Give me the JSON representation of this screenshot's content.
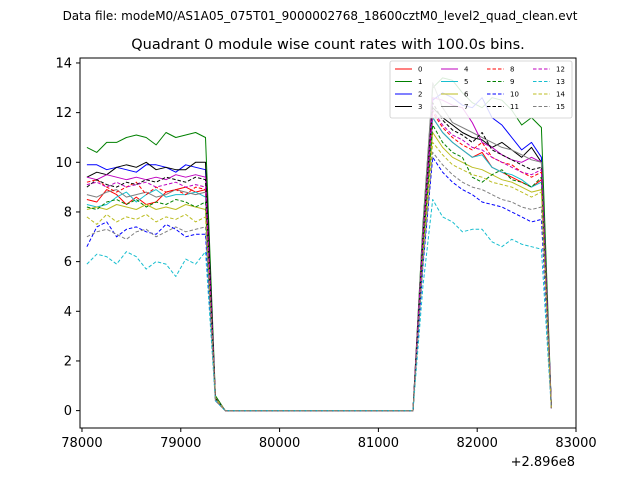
{
  "chart_data": {
    "type": "line",
    "suptitle": "Data file: modeM0/AS1A05_075T01_9000002768_18600cztM0_level2_quad_clean.evt",
    "title": "Quadrant 0 module wise count rates with 100.0s bins.",
    "xlabel": "",
    "ylabel": "",
    "x_offset_label": "+2.896e8",
    "xlim": [
      77980,
      83000
    ],
    "ylim": [
      -0.7,
      14.2
    ],
    "xticks": [
      "78000",
      "79000",
      "80000",
      "81000",
      "82000",
      "83000"
    ],
    "yticks": [
      "0",
      "2",
      "4",
      "6",
      "8",
      "10",
      "12",
      "14"
    ],
    "legend_position": "top-right",
    "x": [
      78050,
      78150,
      78250,
      78350,
      78450,
      78550,
      78650,
      78750,
      78850,
      78950,
      79050,
      79150,
      79250,
      79350,
      79450,
      79550,
      79650,
      79750,
      79850,
      79950,
      80050,
      80150,
      80250,
      80350,
      80450,
      80550,
      80650,
      80750,
      80850,
      80950,
      81050,
      81150,
      81250,
      81350,
      81450,
      81550,
      81650,
      81750,
      81850,
      81950,
      82050,
      82150,
      82250,
      82350,
      82450,
      82550,
      82650,
      82750
    ],
    "series": [
      {
        "name": "0",
        "color": "#ff0000",
        "dash": "solid",
        "values": [
          8.5,
          8.4,
          8.9,
          8.7,
          8.3,
          8.6,
          8.3,
          8.4,
          8.8,
          8.9,
          9.0,
          8.8,
          8.9,
          0.5,
          0.0,
          0.0,
          0.0,
          0.0,
          0.0,
          0.0,
          0.0,
          0.0,
          0.0,
          0.0,
          0.0,
          0.0,
          0.0,
          0.0,
          0.0,
          0.0,
          0.0,
          0.0,
          0.0,
          0.0,
          6.5,
          11.8,
          11.2,
          10.8,
          10.5,
          10.2,
          10.4,
          9.8,
          9.6,
          9.4,
          9.2,
          9.0,
          9.3,
          0.1
        ]
      },
      {
        "name": "1",
        "color": "#008000",
        "dash": "solid",
        "values": [
          10.6,
          10.4,
          10.8,
          10.8,
          11.0,
          11.1,
          11.0,
          10.7,
          11.2,
          11.0,
          11.1,
          11.2,
          11.0,
          0.6,
          0.0,
          0.0,
          0.0,
          0.0,
          0.0,
          0.0,
          0.0,
          0.0,
          0.0,
          0.0,
          0.0,
          0.0,
          0.0,
          0.0,
          0.0,
          0.0,
          0.0,
          0.0,
          0.0,
          0.0,
          7.5,
          13.0,
          13.4,
          13.3,
          12.8,
          12.4,
          12.2,
          12.6,
          12.5,
          12.1,
          11.5,
          11.8,
          11.4,
          0.2
        ]
      },
      {
        "name": "2",
        "color": "#0000ff",
        "dash": "solid",
        "values": [
          9.9,
          9.9,
          9.7,
          9.8,
          9.7,
          9.6,
          9.9,
          9.9,
          9.8,
          9.6,
          9.9,
          9.8,
          9.7,
          0.5,
          0.0,
          0.0,
          0.0,
          0.0,
          0.0,
          0.0,
          0.0,
          0.0,
          0.0,
          0.0,
          0.0,
          0.0,
          0.0,
          0.0,
          0.0,
          0.0,
          0.0,
          0.0,
          0.0,
          0.0,
          7.0,
          12.5,
          12.8,
          12.6,
          12.3,
          12.2,
          12.6,
          11.8,
          11.5,
          11.0,
          10.5,
          10.8,
          10.2,
          0.2
        ]
      },
      {
        "name": "3",
        "color": "#000000",
        "dash": "solid",
        "values": [
          9.4,
          9.6,
          9.5,
          9.8,
          9.9,
          9.8,
          10.0,
          9.7,
          9.8,
          9.7,
          9.7,
          10.0,
          10.0,
          0.5,
          0.0,
          0.0,
          0.0,
          0.0,
          0.0,
          0.0,
          0.0,
          0.0,
          0.0,
          0.0,
          0.0,
          0.0,
          0.0,
          0.0,
          0.0,
          0.0,
          0.0,
          0.0,
          0.0,
          0.0,
          7.2,
          12.2,
          11.8,
          11.5,
          11.2,
          11.0,
          10.9,
          10.6,
          10.8,
          10.5,
          10.2,
          10.6,
          10.0,
          0.2
        ]
      },
      {
        "name": "4",
        "color": "#bf00bf",
        "dash": "solid",
        "values": [
          9.4,
          9.3,
          9.5,
          9.4,
          9.3,
          9.4,
          9.3,
          9.4,
          9.3,
          9.5,
          9.4,
          9.5,
          9.4,
          0.5,
          0.0,
          0.0,
          0.0,
          0.0,
          0.0,
          0.0,
          0.0,
          0.0,
          0.0,
          0.0,
          0.0,
          0.0,
          0.0,
          0.0,
          0.0,
          0.0,
          0.0,
          0.0,
          0.0,
          0.0,
          7.0,
          12.6,
          12.5,
          12.3,
          12.2,
          11.6,
          10.8,
          10.6,
          10.3,
          10.1,
          10.0,
          10.2,
          10.0,
          0.2
        ]
      },
      {
        "name": "5",
        "color": "#17becf",
        "dash": "solid",
        "values": [
          8.3,
          8.2,
          8.3,
          8.6,
          8.8,
          8.4,
          8.7,
          8.9,
          8.6,
          8.7,
          8.7,
          8.8,
          8.6,
          0.5,
          0.0,
          0.0,
          0.0,
          0.0,
          0.0,
          0.0,
          0.0,
          0.0,
          0.0,
          0.0,
          0.0,
          0.0,
          0.0,
          0.0,
          0.0,
          0.0,
          0.0,
          0.0,
          0.0,
          0.0,
          6.6,
          11.8,
          11.2,
          10.8,
          10.5,
          10.2,
          10.3,
          9.8,
          9.6,
          9.5,
          9.3,
          9.0,
          9.2,
          0.1
        ]
      },
      {
        "name": "6",
        "color": "#bcbd22",
        "dash": "solid",
        "values": [
          8.1,
          8.2,
          8.1,
          8.3,
          8.2,
          8.1,
          8.3,
          8.1,
          8.2,
          8.1,
          8.3,
          8.2,
          8.1,
          0.5,
          0.0,
          0.0,
          0.0,
          0.0,
          0.0,
          0.0,
          0.0,
          0.0,
          0.0,
          0.0,
          0.0,
          0.0,
          0.0,
          0.0,
          0.0,
          0.0,
          0.0,
          0.0,
          0.0,
          0.0,
          6.4,
          11.2,
          10.6,
          10.2,
          10.0,
          9.8,
          9.7,
          9.5,
          9.3,
          9.2,
          9.0,
          8.8,
          8.9,
          0.1
        ]
      },
      {
        "name": "7",
        "color": "#808080",
        "dash": "solid",
        "values": [
          8.7,
          8.6,
          8.8,
          8.9,
          8.6,
          8.7,
          8.8,
          8.6,
          8.7,
          8.9,
          8.8,
          8.7,
          8.8,
          0.5,
          0.0,
          0.0,
          0.0,
          0.0,
          0.0,
          0.0,
          0.0,
          0.0,
          0.0,
          0.0,
          0.0,
          0.0,
          0.0,
          0.0,
          0.0,
          0.0,
          0.0,
          0.0,
          0.0,
          0.0,
          7.4,
          13.2,
          12.2,
          11.6,
          11.4,
          11.2,
          11.0,
          10.8,
          10.6,
          10.5,
          10.3,
          10.1,
          10.0,
          0.2
        ]
      },
      {
        "name": "8",
        "color": "#ff0000",
        "dash": "dashed",
        "values": [
          9.2,
          9.3,
          9.0,
          8.8,
          9.0,
          9.2,
          8.7,
          9.0,
          8.8,
          8.9,
          8.7,
          9.0,
          8.9,
          0.5,
          0.0,
          0.0,
          0.0,
          0.0,
          0.0,
          0.0,
          0.0,
          0.0,
          0.0,
          0.0,
          0.0,
          0.0,
          0.0,
          0.0,
          0.0,
          0.0,
          0.0,
          0.0,
          0.0,
          0.0,
          6.8,
          12.0,
          11.4,
          11.0,
          10.7,
          10.5,
          10.8,
          10.2,
          10.0,
          9.9,
          9.6,
          9.4,
          9.6,
          0.1
        ]
      },
      {
        "name": "9",
        "color": "#008000",
        "dash": "dashed",
        "values": [
          8.2,
          8.1,
          8.4,
          8.5,
          8.3,
          8.5,
          8.2,
          8.4,
          8.3,
          8.5,
          8.4,
          8.2,
          8.4,
          0.5,
          0.0,
          0.0,
          0.0,
          0.0,
          0.0,
          0.0,
          0.0,
          0.0,
          0.0,
          0.0,
          0.0,
          0.0,
          0.0,
          0.0,
          0.0,
          0.0,
          0.0,
          0.0,
          0.0,
          0.0,
          6.5,
          11.5,
          10.8,
          10.4,
          10.2,
          9.4,
          9.2,
          9.5,
          9.7,
          9.3,
          9.2,
          9.0,
          9.4,
          0.1
        ]
      },
      {
        "name": "10",
        "color": "#0000ff",
        "dash": "dashed",
        "values": [
          6.6,
          7.4,
          7.6,
          7.0,
          7.3,
          7.4,
          7.2,
          7.1,
          7.5,
          7.3,
          7.0,
          7.1,
          7.1,
          0.4,
          0.0,
          0.0,
          0.0,
          0.0,
          0.0,
          0.0,
          0.0,
          0.0,
          0.0,
          0.0,
          0.0,
          0.0,
          0.0,
          0.0,
          0.0,
          0.0,
          0.0,
          0.0,
          0.0,
          0.0,
          5.8,
          10.2,
          9.6,
          9.2,
          8.9,
          8.7,
          8.4,
          8.3,
          8.2,
          8.0,
          7.8,
          7.6,
          7.7,
          0.1
        ]
      },
      {
        "name": "11",
        "color": "#000000",
        "dash": "dashed",
        "values": [
          9.0,
          9.3,
          9.1,
          9.0,
          9.2,
          9.1,
          9.3,
          9.2,
          9.4,
          9.3,
          9.2,
          9.4,
          9.3,
          0.5,
          0.0,
          0.0,
          0.0,
          0.0,
          0.0,
          0.0,
          0.0,
          0.0,
          0.0,
          0.0,
          0.0,
          0.0,
          0.0,
          0.0,
          0.0,
          0.0,
          0.0,
          0.0,
          0.0,
          0.0,
          7.0,
          12.4,
          11.7,
          11.3,
          11.1,
          10.8,
          11.2,
          10.5,
          10.3,
          10.1,
          9.9,
          9.7,
          9.8,
          0.2
        ]
      },
      {
        "name": "12",
        "color": "#bf00bf",
        "dash": "dashed",
        "values": [
          9.1,
          9.2,
          9.0,
          9.2,
          9.0,
          9.1,
          9.2,
          9.0,
          9.1,
          9.2,
          9.0,
          9.1,
          9.0,
          0.5,
          0.0,
          0.0,
          0.0,
          0.0,
          0.0,
          0.0,
          0.0,
          0.0,
          0.0,
          0.0,
          0.0,
          0.0,
          0.0,
          0.0,
          0.0,
          0.0,
          0.0,
          0.0,
          0.0,
          0.0,
          6.9,
          12.1,
          11.5,
          11.1,
          10.9,
          10.6,
          10.5,
          10.2,
          10.0,
          9.8,
          9.6,
          9.5,
          9.7,
          0.1
        ]
      },
      {
        "name": "13",
        "color": "#17becf",
        "dash": "dashed",
        "values": [
          5.9,
          6.3,
          6.2,
          5.9,
          6.4,
          6.2,
          5.7,
          6.0,
          5.9,
          5.4,
          6.1,
          5.9,
          6.4,
          0.4,
          0.0,
          0.0,
          0.0,
          0.0,
          0.0,
          0.0,
          0.0,
          0.0,
          0.0,
          0.0,
          0.0,
          0.0,
          0.0,
          0.0,
          0.0,
          0.0,
          0.0,
          0.0,
          0.0,
          0.0,
          5.0,
          8.5,
          7.8,
          7.6,
          7.2,
          7.3,
          7.3,
          6.8,
          6.6,
          6.9,
          6.7,
          6.6,
          6.5,
          0.1
        ]
      },
      {
        "name": "14",
        "color": "#bcbd22",
        "dash": "dashed",
        "values": [
          7.8,
          7.5,
          7.9,
          7.6,
          7.8,
          7.7,
          7.9,
          7.6,
          7.8,
          7.7,
          7.9,
          7.6,
          7.8,
          0.5,
          0.0,
          0.0,
          0.0,
          0.0,
          0.0,
          0.0,
          0.0,
          0.0,
          0.0,
          0.0,
          0.0,
          0.0,
          0.0,
          0.0,
          0.0,
          0.0,
          0.0,
          0.0,
          0.0,
          0.0,
          6.0,
          10.8,
          10.3,
          9.9,
          9.7,
          9.5,
          9.4,
          9.2,
          9.1,
          9.0,
          8.8,
          8.6,
          8.8,
          0.1
        ]
      },
      {
        "name": "15",
        "color": "#808080",
        "dash": "dashed",
        "values": [
          7.0,
          7.2,
          7.3,
          7.1,
          6.9,
          7.2,
          7.3,
          7.0,
          7.2,
          7.4,
          7.2,
          7.3,
          7.4,
          0.4,
          0.0,
          0.0,
          0.0,
          0.0,
          0.0,
          0.0,
          0.0,
          0.0,
          0.0,
          0.0,
          0.0,
          0.0,
          0.0,
          0.0,
          0.0,
          0.0,
          0.0,
          0.0,
          0.0,
          0.0,
          5.9,
          10.4,
          9.9,
          9.5,
          9.2,
          9.0,
          8.9,
          8.7,
          8.5,
          8.4,
          8.2,
          8.1,
          8.2,
          0.1
        ]
      }
    ]
  }
}
